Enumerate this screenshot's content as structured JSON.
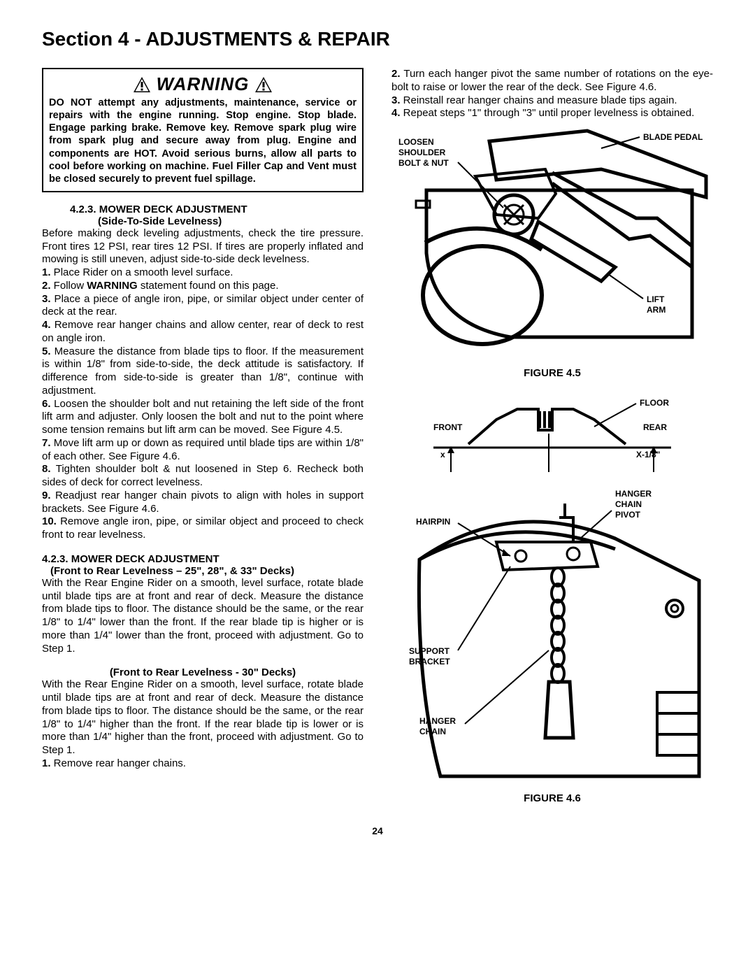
{
  "section_title": "Section 4 - ADJUSTMENTS & REPAIR",
  "warning": {
    "title": "WARNING",
    "body": "DO NOT attempt any adjustments, maintenance, service or repairs with the engine running. Stop engine. Stop blade. Engage parking brake. Remove key. Remove spark plug wire from spark plug and secure away from plug. Engine and components are HOT. Avoid serious burns, allow all parts to cool before working on machine. Fuel Filler Cap and Vent must be closed securely to prevent fuel spillage."
  },
  "left": {
    "h1": "4.2.3.  MOWER DECK ADJUSTMENT",
    "h1_sub": "(Side-To-Side Levelness)",
    "p1": "Before making deck leveling adjustments, check the tire pressure. Front tires 12 PSI, rear tires 12 PSI. If tires are properly inflated and mowing is still uneven, adjust side-to-side deck levelness.",
    "steps1": [
      {
        "n": "1.",
        "t": " Place Rider on a smooth level surface."
      },
      {
        "n": "2.",
        "t": " Follow ",
        "bold": "WARNING",
        "t2": " statement found on this page."
      },
      {
        "n": "3.",
        "t": " Place a piece of angle iron, pipe, or similar object under center of deck at the rear."
      },
      {
        "n": "4.",
        "t": " Remove rear hanger chains and allow center, rear of deck to rest on angle iron."
      },
      {
        "n": "5.",
        "t": " Measure the distance from blade tips to floor. If the measurement is within 1/8\" from side-to-side, the deck attitude is satisfactory.  If difference from side-to-side is greater than 1/8\", continue with adjustment."
      },
      {
        "n": "6.",
        "t": " Loosen the shoulder bolt and nut retaining the left side of the front lift arm and adjuster. Only loosen the bolt and nut to the point where some tension remains but lift arm can be moved. See Figure 4.5."
      },
      {
        "n": "7.",
        "t": " Move lift arm up or down as required until blade tips are within 1/8\" of each other.  See Figure 4.6."
      },
      {
        "n": "8.",
        "t": " Tighten shoulder bolt & nut loosened in Step 6. Recheck both sides of deck for correct levelness."
      },
      {
        "n": "9.",
        "t": " Readjust rear hanger chain pivots to align with holes in support brackets. See Figure 4.6."
      },
      {
        "n": "10.",
        "t": " Remove angle iron, pipe, or similar object and proceed to check front to rear levelness."
      }
    ],
    "h2": "4.2.3.  MOWER DECK ADJUSTMENT",
    "h2_sub": "(Front to Rear Levelness – 25\", 28\", & 33\" Decks)",
    "p2": "With the Rear Engine Rider on a smooth, level surface, rotate blade until blade tips are at front and rear of deck.  Measure the distance from blade tips to floor. The distance should be the same, or the rear 1/8\" to 1/4\" lower than the front. If the rear blade tip is higher or is more than 1/4\" lower than the front, proceed with adjustment. Go to Step 1.",
    "h3": "(Front to Rear Levelness - 30\" Decks)",
    "p3": "With the Rear Engine Rider on a smooth, level surface, rotate blade until blade tips are at front and rear of deck. Measure the distance from blade tips to floor. The distance should be the same, or the rear 1/8\" to 1/4\" higher than the front.  If the rear blade tip is lower or is more than 1/4\" higher than the front, proceed with adjustment. Go to Step 1.",
    "steps2": [
      {
        "n": "1.",
        "t": " Remove rear hanger chains."
      }
    ]
  },
  "right": {
    "steps": [
      {
        "n": "2.",
        "t": " Turn each hanger pivot the same number of rotations on the eye-bolt to raise or lower the rear of the deck.  See Figure 4.6."
      },
      {
        "n": "3.",
        "t": " Reinstall rear hanger chains and measure blade tips again."
      },
      {
        "n": "4.",
        "t": " Repeat steps \"1\" through \"3\" until proper levelness is obtained."
      }
    ],
    "fig45": {
      "caption": "FIGURE 4.5",
      "labels": {
        "loosen": "LOOSEN SHOULDER BOLT & NUT",
        "blade_pedal": "BLADE PEDAL",
        "lift_arm": "LIFT ARM"
      }
    },
    "fig46": {
      "caption": "FIGURE 4.6",
      "labels": {
        "floor": "FLOOR",
        "front": "FRONT",
        "rear": "REAR",
        "x": "x",
        "x18": "X-1/8\"",
        "hanger_chain_pivot": "HANGER CHAIN PIVOT",
        "hairpin": "HAIRPIN",
        "support_bracket": "SUPPORT BRACKET",
        "hanger_chain": "HANGER CHAIN"
      }
    }
  },
  "page_number": "24"
}
